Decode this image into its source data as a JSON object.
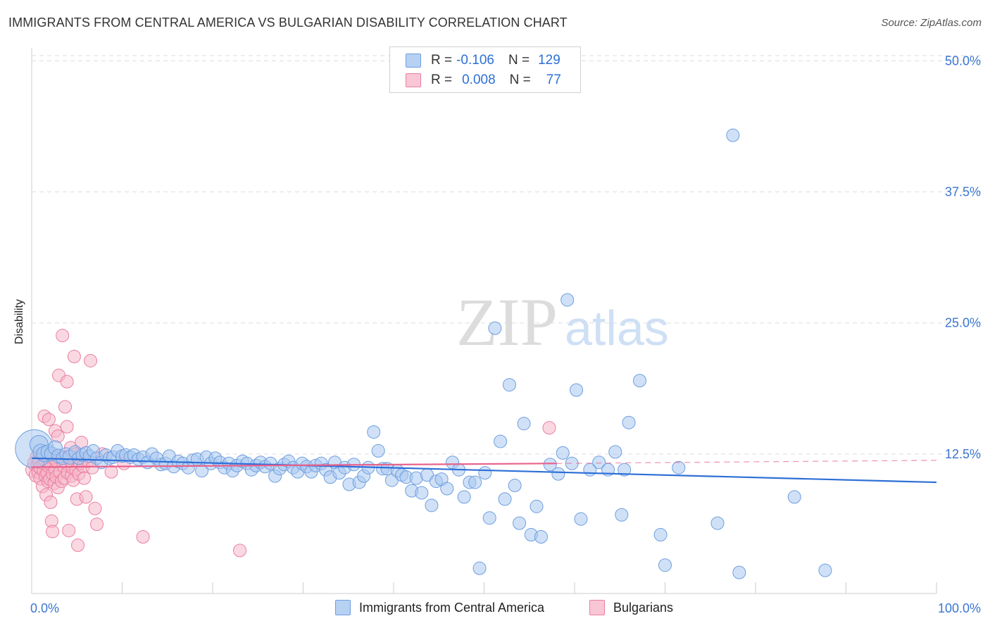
{
  "title": "IMMIGRANTS FROM CENTRAL AMERICA VS BULGARIAN DISABILITY CORRELATION CHART",
  "source": "Source: ZipAtlas.com",
  "watermark": {
    "zip": "ZIP",
    "atlas": "atlas"
  },
  "colors": {
    "blue_fill": "#a9c8f0",
    "blue_stroke": "#6d9ee0",
    "blue_line": "#2d6fd6",
    "pink_fill": "#f6b8cb",
    "pink_stroke": "#ea7fa0",
    "pink_line": "#e8638c",
    "axis_text": "#3a76d0",
    "grid": "#dddddd"
  },
  "legend": {
    "rows": [
      {
        "r_label": "R =",
        "r_value": "-0.106",
        "n_label": "N =",
        "n_value": "129"
      },
      {
        "r_label": "R =",
        "r_value": "0.008",
        "n_label": "N =",
        "n_value": "77"
      }
    ]
  },
  "bottom_legend": {
    "blue": "Immigrants from Central America",
    "pink": "Bulgarians"
  },
  "chart_data": {
    "type": "scatter",
    "title": "IMMIGRANTS FROM CENTRAL AMERICA VS BULGARIAN DISABILITY CORRELATION CHART",
    "xlabel": "",
    "ylabel": "Disability",
    "xlim": [
      0,
      100
    ],
    "ylim": [
      0,
      50.5
    ],
    "x_tick_labels": [
      "0.0%",
      "100.0%"
    ],
    "y_ticks": [
      12.5,
      25.0,
      37.5,
      50.0
    ],
    "y_tick_labels": [
      "12.5%",
      "25.0%",
      "37.5%",
      "50.0%"
    ],
    "series": [
      {
        "name": "Immigrants from Central America",
        "color": "blue",
        "trend": {
          "x": [
            0,
            100
          ],
          "y": [
            12.1,
            9.8
          ]
        },
        "points": [
          [
            0.3,
            13.0,
            28
          ],
          [
            0.8,
            13.4,
            14
          ],
          [
            1.0,
            12.7,
            12
          ],
          [
            1.4,
            12.5,
            12
          ],
          [
            1.8,
            12.7,
            11
          ],
          [
            2.2,
            12.5,
            11
          ],
          [
            2.6,
            13.1,
            11
          ],
          [
            3.0,
            12.3,
            11
          ],
          [
            3.4,
            12.1,
            10
          ],
          [
            3.8,
            12.5,
            10
          ],
          [
            4.2,
            12.2,
            11
          ],
          [
            4.8,
            12.7,
            10
          ],
          [
            5.2,
            12.1,
            10
          ],
          [
            5.6,
            12.4,
            10
          ],
          [
            6.0,
            12.6,
            10
          ],
          [
            6.4,
            12.3,
            10
          ],
          [
            6.8,
            12.8,
            10
          ],
          [
            7.2,
            12.1,
            10
          ],
          [
            7.7,
            11.7,
            10
          ],
          [
            8.2,
            12.4,
            10
          ],
          [
            8.6,
            12.1,
            10
          ],
          [
            9.0,
            12.2,
            10
          ],
          [
            9.5,
            12.8,
            10
          ],
          [
            10.0,
            12.3,
            10
          ],
          [
            10.4,
            12.4,
            10
          ],
          [
            10.9,
            12.2,
            10
          ],
          [
            11.3,
            12.4,
            10
          ],
          [
            11.8,
            12.0,
            10
          ],
          [
            12.3,
            12.2,
            10
          ],
          [
            12.8,
            11.7,
            10
          ],
          [
            13.3,
            12.5,
            10
          ],
          [
            13.8,
            12.1,
            10
          ],
          [
            14.3,
            11.5,
            10
          ],
          [
            14.8,
            11.6,
            10
          ],
          [
            15.2,
            12.3,
            10
          ],
          [
            15.7,
            11.3,
            10
          ],
          [
            16.2,
            11.8,
            10
          ],
          [
            16.7,
            11.6,
            10
          ],
          [
            17.3,
            11.2,
            10
          ],
          [
            17.8,
            11.9,
            10
          ],
          [
            18.3,
            12.0,
            10
          ],
          [
            18.8,
            10.9,
            10
          ],
          [
            19.3,
            12.2,
            10
          ],
          [
            19.8,
            11.6,
            10
          ],
          [
            20.3,
            12.1,
            10
          ],
          [
            20.8,
            11.7,
            10
          ],
          [
            21.3,
            11.2,
            10
          ],
          [
            21.8,
            11.6,
            10
          ],
          [
            22.2,
            10.9,
            10
          ],
          [
            22.7,
            11.4,
            10
          ],
          [
            23.3,
            11.8,
            10
          ],
          [
            23.8,
            11.6,
            10
          ],
          [
            24.3,
            11.0,
            10
          ],
          [
            24.8,
            11.4,
            10
          ],
          [
            25.3,
            11.7,
            10
          ],
          [
            25.8,
            11.3,
            10
          ],
          [
            26.4,
            11.6,
            10
          ],
          [
            26.9,
            10.4,
            10
          ],
          [
            27.4,
            11.1,
            10
          ],
          [
            27.9,
            11.5,
            10
          ],
          [
            28.4,
            11.8,
            10
          ],
          [
            28.9,
            11.2,
            10
          ],
          [
            29.4,
            10.8,
            10
          ],
          [
            29.9,
            11.6,
            10
          ],
          [
            30.4,
            11.3,
            10
          ],
          [
            30.9,
            10.8,
            10
          ],
          [
            31.4,
            11.4,
            10
          ],
          [
            32.0,
            11.6,
            10
          ],
          [
            32.5,
            11.0,
            10
          ],
          [
            33.0,
            10.3,
            10
          ],
          [
            33.5,
            11.7,
            10
          ],
          [
            34.0,
            10.7,
            10
          ],
          [
            34.6,
            11.2,
            10
          ],
          [
            35.1,
            9.6,
            10
          ],
          [
            35.6,
            11.5,
            10
          ],
          [
            36.2,
            9.8,
            10
          ],
          [
            36.7,
            10.4,
            10
          ],
          [
            37.2,
            11.2,
            10
          ],
          [
            37.8,
            14.6,
            10
          ],
          [
            38.3,
            12.8,
            10
          ],
          [
            38.8,
            11.1,
            10
          ],
          [
            39.3,
            11.1,
            10
          ],
          [
            39.8,
            10.0,
            10
          ],
          [
            40.4,
            10.9,
            10
          ],
          [
            40.9,
            10.5,
            10
          ],
          [
            41.4,
            10.3,
            10
          ],
          [
            42.0,
            9.0,
            10
          ],
          [
            42.5,
            10.2,
            10
          ],
          [
            43.1,
            8.8,
            10
          ],
          [
            43.7,
            10.5,
            10
          ],
          [
            44.2,
            7.6,
            10
          ],
          [
            44.7,
            9.9,
            10
          ],
          [
            45.3,
            10.1,
            10
          ],
          [
            45.9,
            9.2,
            10
          ],
          [
            46.5,
            11.7,
            10
          ],
          [
            47.2,
            11.0,
            10
          ],
          [
            47.8,
            8.4,
            10
          ],
          [
            48.4,
            9.8,
            10
          ],
          [
            49.0,
            9.8,
            10
          ],
          [
            49.5,
            1.6,
            10
          ],
          [
            50.1,
            10.7,
            10
          ],
          [
            50.6,
            6.4,
            10
          ],
          [
            51.2,
            24.5,
            10
          ],
          [
            51.8,
            13.7,
            10
          ],
          [
            52.3,
            8.2,
            10
          ],
          [
            52.8,
            19.1,
            10
          ],
          [
            53.4,
            9.5,
            10
          ],
          [
            53.9,
            5.9,
            10
          ],
          [
            54.4,
            15.4,
            10
          ],
          [
            55.2,
            4.8,
            10
          ],
          [
            55.8,
            7.5,
            10
          ],
          [
            56.3,
            4.6,
            10
          ],
          [
            57.3,
            11.5,
            10
          ],
          [
            58.2,
            10.6,
            10
          ],
          [
            58.7,
            12.6,
            10
          ],
          [
            59.2,
            27.2,
            10
          ],
          [
            59.7,
            11.6,
            10
          ],
          [
            60.2,
            18.6,
            10
          ],
          [
            60.7,
            6.3,
            10
          ],
          [
            61.7,
            11.0,
            10
          ],
          [
            62.7,
            11.7,
            10
          ],
          [
            63.7,
            11.0,
            10
          ],
          [
            64.5,
            12.7,
            10
          ],
          [
            65.2,
            6.7,
            10
          ],
          [
            65.5,
            11.0,
            10
          ],
          [
            66.0,
            15.5,
            10
          ],
          [
            67.2,
            19.5,
            10
          ],
          [
            69.5,
            4.8,
            10
          ],
          [
            70.0,
            1.9,
            10
          ],
          [
            71.5,
            11.2,
            10
          ],
          [
            75.8,
            5.9,
            10
          ],
          [
            77.5,
            42.9,
            10
          ],
          [
            78.2,
            1.2,
            10
          ],
          [
            84.3,
            8.4,
            10
          ],
          [
            87.7,
            1.4,
            10
          ]
        ]
      },
      {
        "name": "Bulgarians",
        "color": "pink",
        "trend": {
          "x": [
            0,
            58
          ],
          "y": [
            11.25,
            11.6
          ]
        },
        "trend_dashed": {
          "x": [
            58,
            100
          ],
          "y": [
            11.6,
            11.9
          ]
        },
        "points": [
          [
            0.2,
            11.0,
            12
          ],
          [
            0.4,
            11.6,
            12
          ],
          [
            0.5,
            10.5,
            11
          ],
          [
            0.6,
            12.2,
            11
          ],
          [
            0.7,
            11.4,
            11
          ],
          [
            0.8,
            10.8,
            11
          ],
          [
            0.9,
            11.8,
            11
          ],
          [
            1.0,
            10.2,
            11
          ],
          [
            1.0,
            11.2,
            11
          ],
          [
            1.1,
            12.5,
            10
          ],
          [
            1.2,
            9.4,
            10
          ],
          [
            1.3,
            10.9,
            10
          ],
          [
            1.3,
            11.6,
            10
          ],
          [
            1.4,
            16.1,
            10
          ],
          [
            1.5,
            10.4,
            10
          ],
          [
            1.5,
            11.9,
            10
          ],
          [
            1.6,
            8.6,
            10
          ],
          [
            1.7,
            10.7,
            10
          ],
          [
            1.7,
            12.2,
            10
          ],
          [
            1.8,
            9.9,
            10
          ],
          [
            1.9,
            11.3,
            10
          ],
          [
            1.9,
            15.8,
            10
          ],
          [
            2.0,
            10.1,
            10
          ],
          [
            2.1,
            7.9,
            10
          ],
          [
            2.1,
            11.5,
            10
          ],
          [
            2.2,
            6.1,
            10
          ],
          [
            2.3,
            10.6,
            10
          ],
          [
            2.3,
            5.1,
            10
          ],
          [
            2.4,
            12.1,
            10
          ],
          [
            2.5,
            9.7,
            10
          ],
          [
            2.6,
            11.0,
            10
          ],
          [
            2.6,
            14.7,
            10
          ],
          [
            2.7,
            10.3,
            10
          ],
          [
            2.8,
            11.8,
            10
          ],
          [
            2.9,
            9.3,
            10
          ],
          [
            2.9,
            14.2,
            10
          ],
          [
            3.0,
            20.0,
            10
          ],
          [
            3.1,
            10.8,
            10
          ],
          [
            3.2,
            12.3,
            10
          ],
          [
            3.3,
            9.9,
            10
          ],
          [
            3.4,
            23.8,
            10
          ],
          [
            3.5,
            11.4,
            10
          ],
          [
            3.6,
            10.2,
            10
          ],
          [
            3.7,
            17.0,
            10
          ],
          [
            3.8,
            11.6,
            10
          ],
          [
            3.9,
            15.1,
            10
          ],
          [
            3.9,
            19.4,
            10
          ],
          [
            4.0,
            10.7,
            10
          ],
          [
            4.1,
            5.2,
            10
          ],
          [
            4.2,
            11.9,
            10
          ],
          [
            4.3,
            13.1,
            10
          ],
          [
            4.4,
            10.4,
            10
          ],
          [
            4.5,
            11.2,
            10
          ],
          [
            4.6,
            10.0,
            10
          ],
          [
            4.7,
            21.8,
            10
          ],
          [
            4.8,
            12.5,
            10
          ],
          [
            4.9,
            11.0,
            10
          ],
          [
            5.0,
            8.2,
            10
          ],
          [
            5.1,
            3.8,
            10
          ],
          [
            5.2,
            10.6,
            10
          ],
          [
            5.3,
            11.6,
            10
          ],
          [
            5.5,
            13.6,
            10
          ],
          [
            5.6,
            12.1,
            10
          ],
          [
            5.7,
            11.3,
            10
          ],
          [
            5.8,
            10.2,
            10
          ],
          [
            6.0,
            8.4,
            10
          ],
          [
            6.2,
            11.8,
            10
          ],
          [
            6.5,
            21.4,
            10
          ],
          [
            6.7,
            11.2,
            10
          ],
          [
            7.0,
            7.3,
            10
          ],
          [
            7.2,
            5.8,
            10
          ],
          [
            7.8,
            12.5,
            10
          ],
          [
            8.8,
            10.8,
            10
          ],
          [
            10.2,
            11.6,
            10
          ],
          [
            12.3,
            4.6,
            10
          ],
          [
            23.0,
            3.3,
            10
          ],
          [
            57.2,
            15.0,
            10
          ]
        ]
      }
    ]
  }
}
